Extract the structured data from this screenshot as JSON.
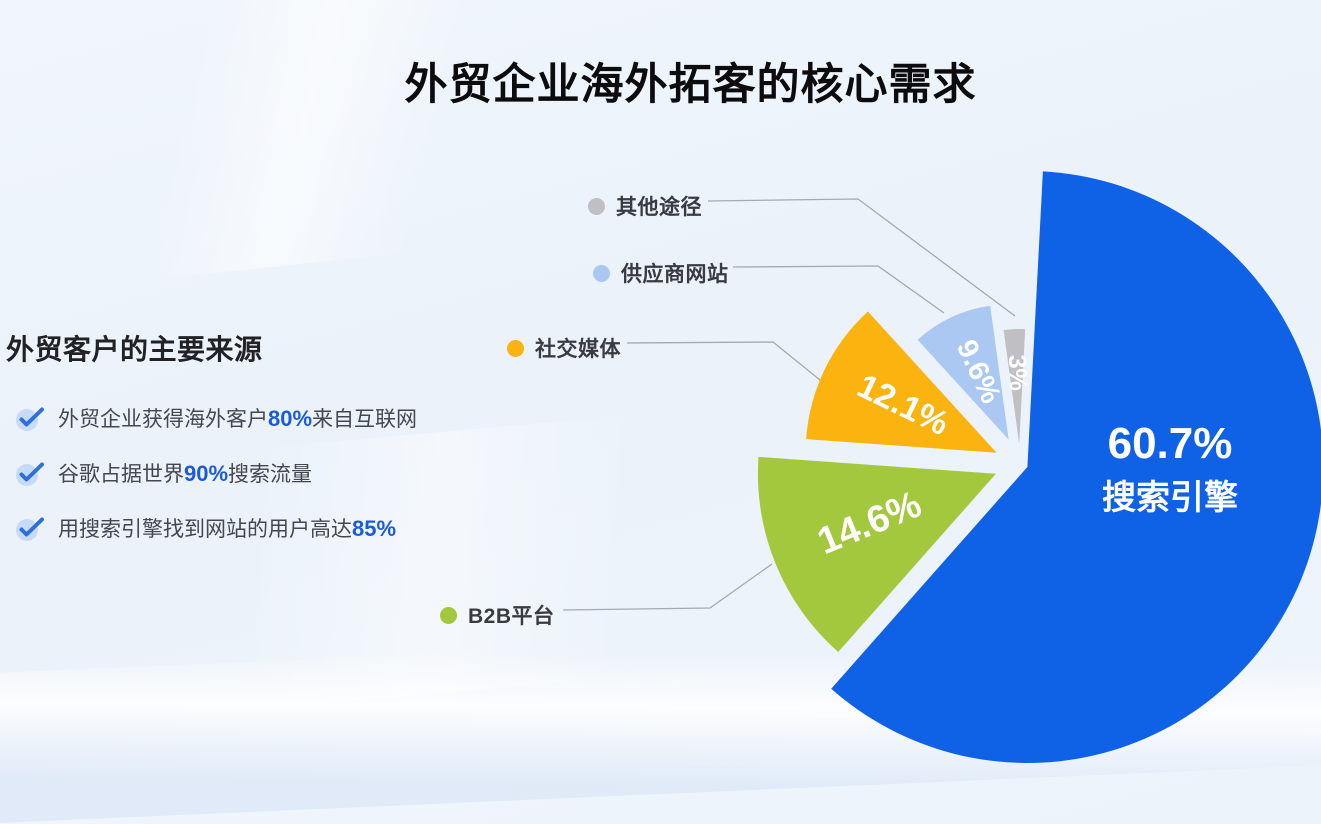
{
  "title": "外贸企业海外拓客的核心需求",
  "left_panel": {
    "heading": "外贸客户的主要来源",
    "bullets": [
      {
        "pre": "外贸企业获得海外客户",
        "highlight": "80%",
        "post": "来自互联网"
      },
      {
        "pre": "谷歌占据世界",
        "highlight": "90%",
        "post": "搜索流量"
      },
      {
        "pre": "用搜索引擎找到网站的用户高达",
        "highlight": "85%",
        "post": ""
      }
    ]
  },
  "chart_data": {
    "type": "pie",
    "title": "外贸企业海外拓客的核心需求",
    "legend_position": "left-scattered",
    "style": "exploded, radius scaled by value, start at 12 o'clock clockwise",
    "series": [
      {
        "key": "search-engine",
        "name": "搜索引擎",
        "value": 60.7,
        "pct_label": "60.7%",
        "color": "#0F62E5"
      },
      {
        "key": "b2b-platform",
        "name": "B2B平台",
        "value": 14.6,
        "pct_label": "14.6%",
        "color": "#A3C83E"
      },
      {
        "key": "social-media",
        "name": "社交媒体",
        "value": 12.1,
        "pct_label": "12.1%",
        "color": "#FBB30F"
      },
      {
        "key": "supplier-website",
        "name": "供应商网站",
        "value": 9.6,
        "pct_label": "9.6%",
        "color": "#AAC8F2"
      },
      {
        "key": "other-channels",
        "name": "其他途径",
        "value": 3,
        "pct_label": "3%",
        "color": "#C0C0C4"
      }
    ]
  },
  "colors": {
    "background": "#EDF3FB",
    "highlight_blue": "#1C5BD8",
    "leader_line": "#9AA2AB",
    "check_circle": "#C7DBF7",
    "check_mark": "#2F6FD9"
  }
}
